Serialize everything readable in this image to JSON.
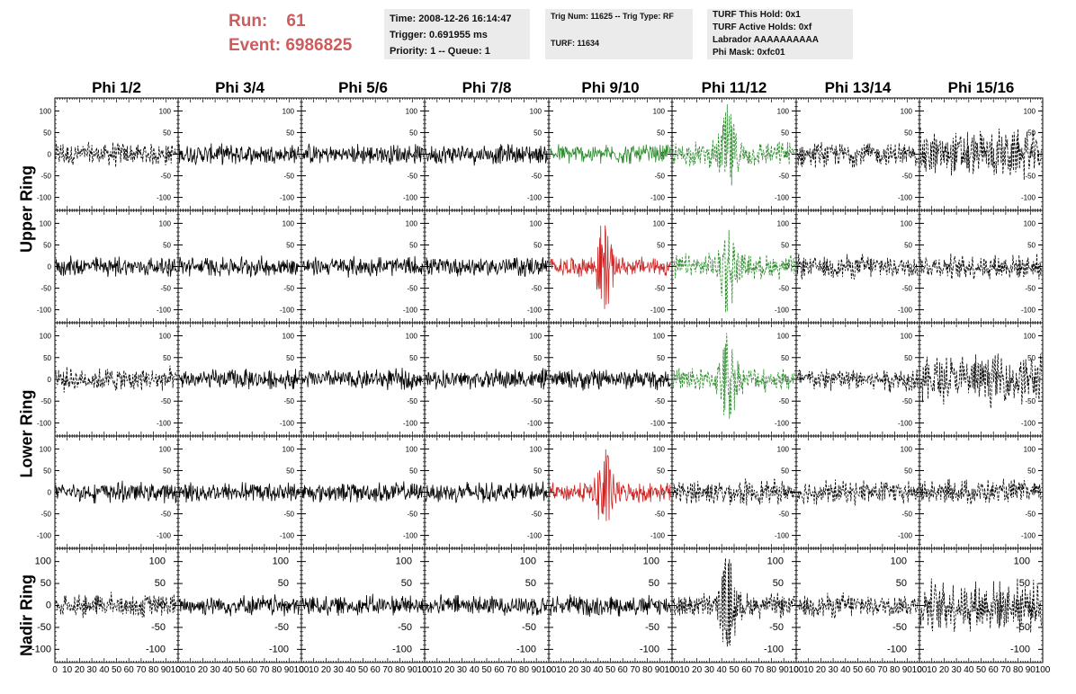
{
  "run": {
    "run_label": "Run:",
    "run_value": "61",
    "event_label": "Event:",
    "event_value": "6986825"
  },
  "info1": [
    "Time: 2008-12-26 16:14:47",
    "Trigger: 0.691955 ms",
    "Priority: 1 -- Queue: 1"
  ],
  "info2": {
    "line1": "Trig Num: 11625 -- Trig Type: RF",
    "line2": "TURF: 11634"
  },
  "info3": [
    "TURF This Hold: 0x1",
    "TURF Active Holds: 0xf",
    "Labrador AAAAAAAAAA",
    "Phi Mask: 0xfc01"
  ],
  "columns": [
    "Phi 1/2",
    "Phi 3/4",
    "Phi 5/6",
    "Phi 7/8",
    "Phi 9/10",
    "Phi 11/12",
    "Phi 13/14",
    "Phi 15/16"
  ],
  "rows": [
    "Upper Ring",
    "Upper Ring",
    "Lower Ring",
    "Lower Ring",
    "Nadir Ring"
  ],
  "ring_labels": [
    "Upper Ring",
    "Lower Ring",
    "Nadir Ring"
  ],
  "colors": {
    "normal": "#000000",
    "triggered": "#2e8b2e",
    "l3": "#cc2222",
    "title_red": "#cd5c5c"
  },
  "chart_data": {
    "type": "line",
    "xlim": [
      0,
      100
    ],
    "ylim": [
      -130,
      130
    ],
    "yticks": [
      -100,
      -50,
      0,
      50,
      100
    ],
    "xticks": [
      0,
      10,
      20,
      30,
      40,
      50,
      60,
      70,
      80,
      90,
      100
    ],
    "tick_labels_y": [
      "100",
      "50",
      "0",
      "-50",
      "-100"
    ],
    "tick_labels_x": [
      "0",
      "10",
      "20",
      "30",
      "40",
      "50",
      "60",
      "70",
      "80",
      "90",
      "100"
    ],
    "grid": false,
    "panels": [
      [
        "normal-dashed",
        "normal",
        "normal",
        "normal",
        "triggered",
        "triggered-dashed-pulse",
        "normal-dashed",
        "normal-dashed-large"
      ],
      [
        "normal",
        "normal",
        "normal",
        "normal",
        "l3-pulse",
        "triggered-dashed-pulse",
        "normal-dashed",
        "normal-dashed"
      ],
      [
        "normal-dashed",
        "normal",
        "normal",
        "normal",
        "normal",
        "triggered-dashed-pulse",
        "normal-dashed",
        "normal-dashed-large"
      ],
      [
        "normal",
        "normal",
        "normal",
        "normal",
        "l3-pulse",
        "normal-dashed",
        "normal-dashed",
        "normal-dashed"
      ],
      [
        "normal-dashed",
        "normal",
        "normal",
        "normal",
        "normal",
        "normal-dashed-pulse",
        "normal-dashed",
        "normal-dashed-large"
      ]
    ]
  }
}
